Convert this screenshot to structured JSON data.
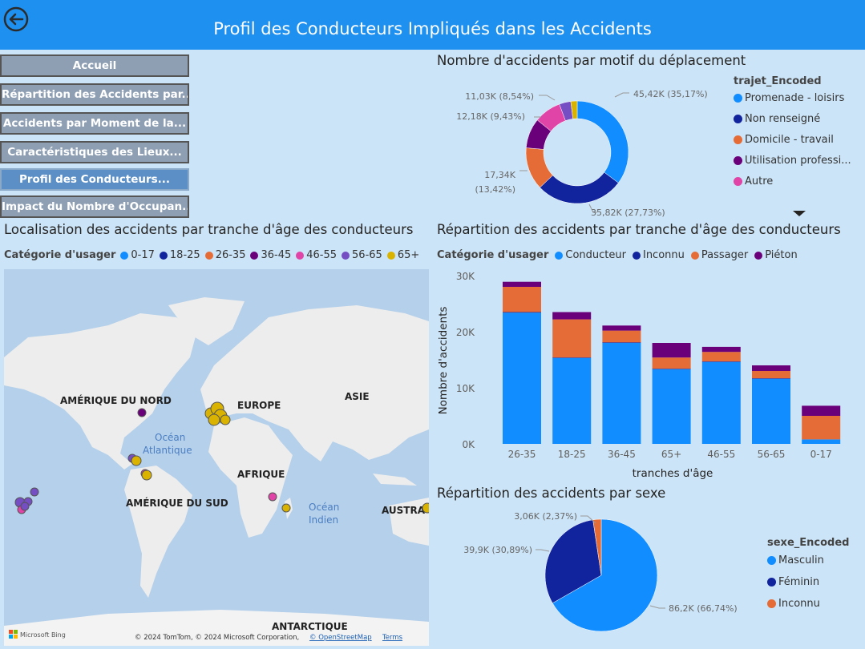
{
  "header": {
    "title": "Profil des Conducteurs Impliqués dans les Accidents"
  },
  "nav": [
    {
      "label": "Accueil",
      "active": false
    },
    {
      "label": "Répartition des Accidents par...",
      "active": false
    },
    {
      "label": "Accidents par Moment de la...",
      "active": false
    },
    {
      "label": "Caractéristiques des Lieux...",
      "active": false
    },
    {
      "label": "Profil des Conducteurs...",
      "active": true
    },
    {
      "label": "Impact du Nombre d'Occupan...",
      "active": false
    }
  ],
  "map": {
    "title": "Localisation des accidents par tranche d'âge des conducteurs",
    "legend_title": "Catégorie d'usager",
    "legend": [
      {
        "label": "0-17",
        "color": "#118dff"
      },
      {
        "label": "18-25",
        "color": "#12239e"
      },
      {
        "label": "26-35",
        "color": "#e66c37"
      },
      {
        "label": "36-45",
        "color": "#6b007b"
      },
      {
        "label": "46-55",
        "color": "#e044a7"
      },
      {
        "label": "56-65",
        "color": "#744ec2"
      },
      {
        "label": "65+",
        "color": "#d9b300"
      }
    ],
    "labels": {
      "north_america": "AMÉRIQUE DU NORD",
      "europe": "EUROPE",
      "asia": "ASIE",
      "atlantic": [
        "Océan",
        "Atlantique"
      ],
      "africa": "AFRIQUE",
      "south_america": "AMÉRIQUE DU SUD",
      "indian": [
        "Océan",
        "Indien"
      ],
      "australia": "AUSTRA",
      "antarctica": "ANTARCTIQUE"
    },
    "bing": "Microsoft Bing",
    "copyright": "© 2024 TomTom, © 2024 Microsoft Corporation, ",
    "osm": "© OpenStreetMap",
    "terms": "Terms"
  },
  "donut": {
    "title": "Nombre d'accidents par motif du déplacement",
    "legend_title": "trajet_Encoded",
    "legend": [
      {
        "label": "Promenade - loisirs",
        "color": "#118dff"
      },
      {
        "label": "Non renseigné",
        "color": "#12239e"
      },
      {
        "label": "Domicile - travail",
        "color": "#e66c37"
      },
      {
        "label": "Utilisation professi...",
        "color": "#6b007b"
      },
      {
        "label": "Autre",
        "color": "#e044a7"
      }
    ],
    "data_labels": [
      "45,42K (35,17%)",
      "35,82K (27,73%)",
      "17,34K",
      "(13,42%)",
      "12,18K (9,43%)",
      "11,03K (8,54%)"
    ]
  },
  "bar": {
    "title": "Répartition des accidents par tranche d'âge des conducteurs",
    "legend_title": "Catégorie d'usager",
    "legend": [
      {
        "label": "Conducteur",
        "color": "#118dff"
      },
      {
        "label": "Inconnu",
        "color": "#12239e"
      },
      {
        "label": "Passager",
        "color": "#e66c37"
      },
      {
        "label": "Piéton",
        "color": "#6b007b"
      }
    ],
    "ylabel": "Nombre d'accidents",
    "xlabel": "tranches d'âge",
    "yticks": [
      "0K",
      "10K",
      "20K",
      "30K"
    ]
  },
  "pie": {
    "title": "Répartition des accidents par sexe",
    "legend_title": "sexe_Encoded",
    "legend": [
      {
        "label": "Masculin",
        "color": "#118dff"
      },
      {
        "label": "Féminin",
        "color": "#12239e"
      },
      {
        "label": "Inconnu",
        "color": "#e66c37"
      }
    ],
    "data_labels": [
      "86,2K (66,74%)",
      "39,9K (30,89%)",
      "3,06K (2,37%)"
    ]
  },
  "chart_data": [
    {
      "type": "pie",
      "title": "Nombre d'accidents par motif du déplacement",
      "categories": [
        "Promenade - loisirs",
        "Non renseigné",
        "Domicile - travail",
        "Utilisation professi...",
        "Autre",
        "",
        ""
      ],
      "values": [
        45.42,
        35.82,
        17.34,
        12.18,
        11.03,
        4.7,
        2.6
      ],
      "colors": [
        "#118dff",
        "#12239e",
        "#e66c37",
        "#6b007b",
        "#e044a7",
        "#744ec2",
        "#d9b300"
      ]
    },
    {
      "type": "bar",
      "title": "Répartition des accidents par tranche d'âge des conducteurs",
      "categories": [
        "26-35",
        "18-25",
        "36-45",
        "65+",
        "46-55",
        "56-65",
        "0-17"
      ],
      "series": [
        {
          "name": "Conducteur",
          "color": "#118dff",
          "values": [
            23.4,
            15.3,
            18.0,
            13.3,
            14.6,
            11.6,
            0.8
          ]
        },
        {
          "name": "Inconnu",
          "color": "#12239e",
          "values": [
            0.1,
            0.1,
            0.1,
            0.1,
            0.1,
            0.1,
            0.0
          ]
        },
        {
          "name": "Passager",
          "color": "#e66c37",
          "values": [
            4.5,
            6.8,
            2.1,
            2.0,
            1.7,
            1.3,
            4.2
          ]
        },
        {
          "name": "Piéton",
          "color": "#6b007b",
          "values": [
            0.9,
            1.3,
            0.9,
            2.6,
            0.9,
            1.0,
            1.8
          ]
        }
      ],
      "xlabel": "tranches d'âge",
      "ylabel": "Nombre d'accidents",
      "ylim": [
        0,
        30
      ]
    },
    {
      "type": "pie",
      "title": "Répartition des accidents par sexe",
      "categories": [
        "Masculin",
        "Féminin",
        "Inconnu"
      ],
      "values": [
        86.2,
        39.9,
        3.06
      ],
      "colors": [
        "#118dff",
        "#12239e",
        "#e66c37"
      ]
    }
  ]
}
